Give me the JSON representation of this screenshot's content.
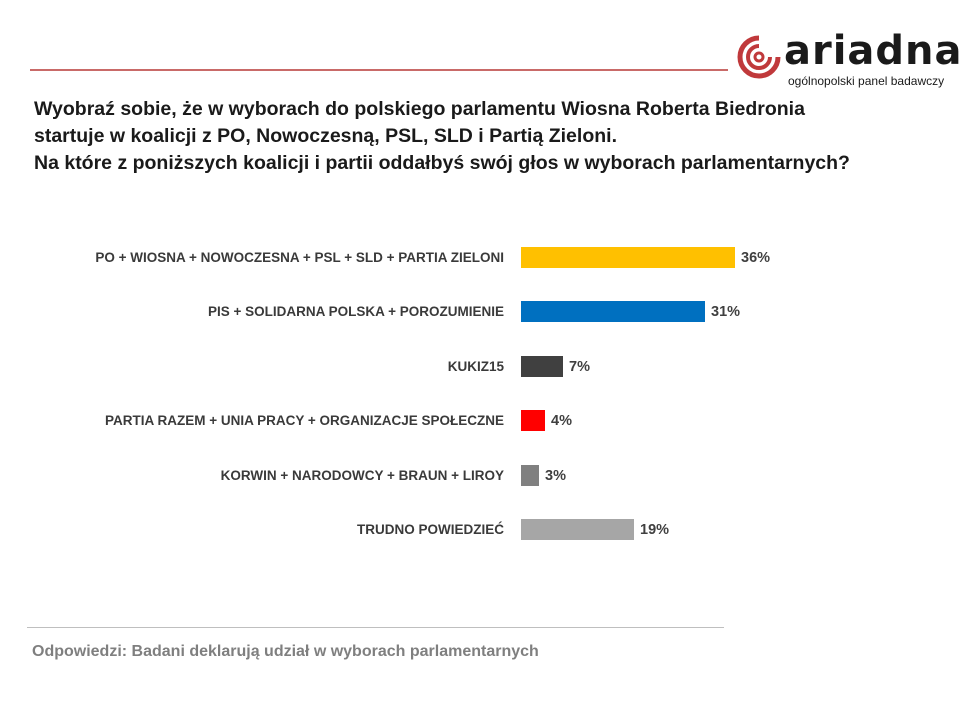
{
  "brand": {
    "name": "ariadna",
    "tagline": "ogólnopolski panel badawczy",
    "accent_color": "#c0393b"
  },
  "question": {
    "lines": [
      "Wyobraź sobie, że w wyborach do polskiego parlamentu Wiosna Roberta Biedronia",
      "startuje w koalicji z PO, Nowoczesną, PSL, SLD  i Partią Zieloni.",
      "Na które z poniższych koalicji i partii oddałbyś swój głos w wyborach parlamentarnych?"
    ]
  },
  "footnote": "Odpowiedzi: Badani deklarują udział w wyborach parlamentarnych",
  "chart_data": {
    "type": "bar",
    "orientation": "horizontal",
    "title": "Wyobraź sobie, że w wyborach do polskiego parlamentu Wiosna Roberta Biedronia startuje w koalicji z PO, Nowoczesną, PSL, SLD i Partią Zieloni. Na które z poniższych koalicji i partii oddałbyś swój głos w wyborach parlamentarnych?",
    "xlabel": "",
    "ylabel": "",
    "unit": "%",
    "grid": false,
    "legend": null,
    "categories": [
      "PO + WIOSNA + NOWOCZESNA  + PSL + SLD + PARTIA ZIELONI",
      "PIS + SOLIDARNA POLSKA + POROZUMIENIE",
      "KUKIZ15",
      "PARTIA RAZEM + UNIA PRACY + ORGANIZACJE SPOŁECZNE",
      "KORWIN + NARODOWCY + BRAUN + LIROY",
      "TRUDNO POWIEDZIEĆ"
    ],
    "values": [
      36,
      31,
      7,
      4,
      3,
      19
    ],
    "value_labels": [
      "36%",
      "31%",
      "7%",
      "4%",
      "3%",
      "19%"
    ],
    "colors": [
      "#ffc000",
      "#0070c0",
      "#404040",
      "#ff0000",
      "#808080",
      "#a6a6a6"
    ],
    "annotations": [
      "Odpowiedzi: Badani deklarują udział w wyborach parlamentarnych"
    ]
  }
}
